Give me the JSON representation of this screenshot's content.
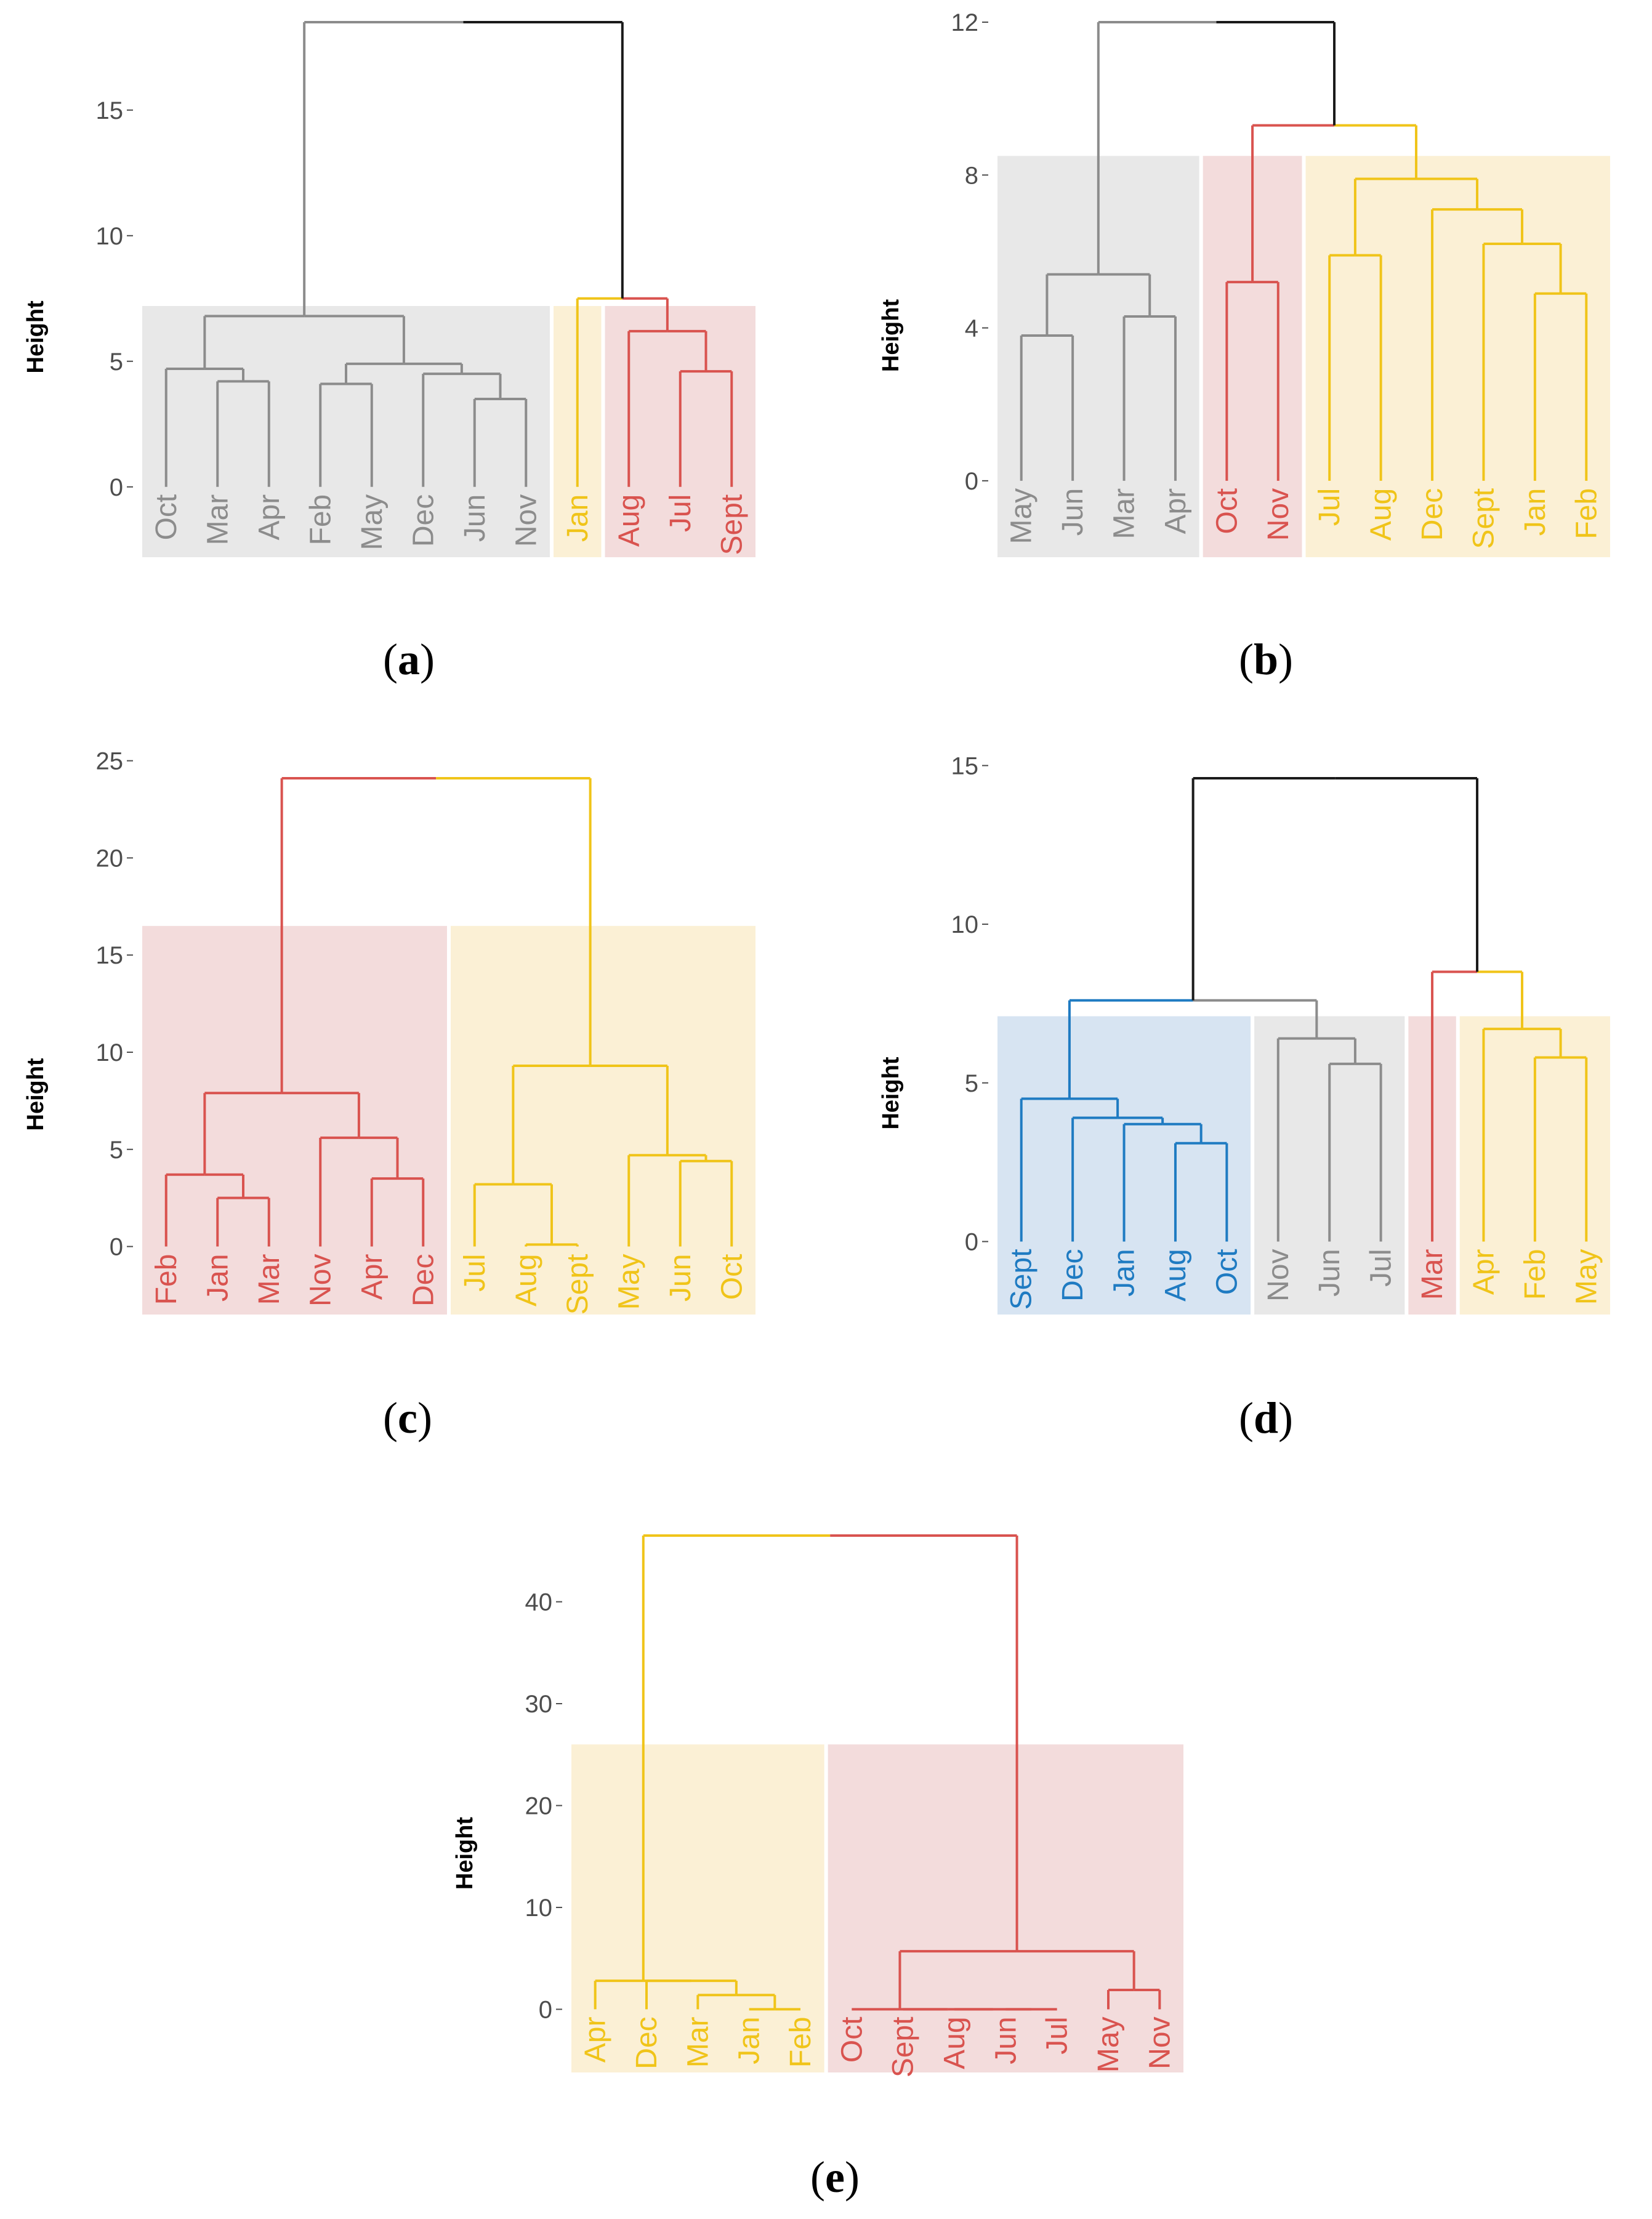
{
  "colors": {
    "gray": "#8c8c8c",
    "red": "#d9534f",
    "yellow": "#f0c419",
    "blue": "#1f7bc2",
    "black": "#1a1a1a",
    "bg_gray": "#e8e8e8",
    "bg_red": "#f3dcdc",
    "bg_yellow": "#fbf0d5",
    "bg_blue": "#d7e4f2"
  },
  "chart_data": [
    {
      "type": "dendrogram",
      "panel": "a",
      "ylabel": "Height",
      "yticks": [
        0,
        5,
        10,
        15
      ],
      "ylim": [
        -2.8,
        18.5
      ],
      "leaves": [
        {
          "label": "Oct",
          "group": "gray"
        },
        {
          "label": "Mar",
          "group": "gray"
        },
        {
          "label": "Apr",
          "group": "gray"
        },
        {
          "label": "Feb",
          "group": "gray"
        },
        {
          "label": "May",
          "group": "gray"
        },
        {
          "label": "Dec",
          "group": "gray"
        },
        {
          "label": "Jun",
          "group": "gray"
        },
        {
          "label": "Nov",
          "group": "gray"
        },
        {
          "label": "Jan",
          "group": "yellow"
        },
        {
          "label": "Aug",
          "group": "red"
        },
        {
          "label": "Jul",
          "group": "red"
        },
        {
          "label": "Sept",
          "group": "red"
        }
      ],
      "merges": [
        {
          "a": "Mar",
          "b": "Apr",
          "h": 4.2,
          "c": "gray"
        },
        {
          "a": "Oct",
          "b": 0,
          "h": 4.7,
          "c": "gray"
        },
        {
          "a": "Feb",
          "b": "May",
          "h": 4.1,
          "c": "gray"
        },
        {
          "a": "Jun",
          "b": "Nov",
          "h": 3.5,
          "c": "gray"
        },
        {
          "a": "Dec",
          "b": 3,
          "h": 4.5,
          "c": "gray"
        },
        {
          "a": 2,
          "b": 4,
          "h": 4.9,
          "c": "gray"
        },
        {
          "a": 1,
          "b": 5,
          "h": 6.8,
          "c": "gray"
        },
        {
          "a": "Jul",
          "b": "Sept",
          "h": 4.6,
          "c": "red"
        },
        {
          "a": "Aug",
          "b": 7,
          "h": 6.2,
          "c": "red"
        },
        {
          "a": "Jan",
          "b": 8,
          "h": 7.5,
          "c": [
            "yellow",
            "red"
          ]
        },
        {
          "a": 6,
          "b": 9,
          "h": 18.5,
          "c": [
            "gray",
            "black"
          ]
        }
      ],
      "boxes": [
        {
          "from": 0,
          "to": 7,
          "fill": "bg_gray",
          "top": 7.2
        },
        {
          "from": 8,
          "to": 8,
          "fill": "bg_yellow",
          "top": 7.2
        },
        {
          "from": 9,
          "to": 11,
          "fill": "bg_red",
          "top": 7.2
        }
      ]
    },
    {
      "type": "dendrogram",
      "panel": "b",
      "ylabel": "Height",
      "yticks": [
        0,
        4,
        8,
        12
      ],
      "ylim": [
        -2,
        12
      ],
      "leaves": [
        {
          "label": "May",
          "group": "gray"
        },
        {
          "label": "Jun",
          "group": "gray"
        },
        {
          "label": "Mar",
          "group": "gray"
        },
        {
          "label": "Apr",
          "group": "gray"
        },
        {
          "label": "Oct",
          "group": "red"
        },
        {
          "label": "Nov",
          "group": "red"
        },
        {
          "label": "Jul",
          "group": "yellow"
        },
        {
          "label": "Aug",
          "group": "yellow"
        },
        {
          "label": "Dec",
          "group": "yellow"
        },
        {
          "label": "Sept",
          "group": "yellow"
        },
        {
          "label": "Jan",
          "group": "yellow"
        },
        {
          "label": "Feb",
          "group": "yellow"
        }
      ],
      "merges": [
        {
          "a": "May",
          "b": "Jun",
          "h": 3.8,
          "c": "gray"
        },
        {
          "a": "Mar",
          "b": "Apr",
          "h": 4.3,
          "c": "gray"
        },
        {
          "a": 0,
          "b": 1,
          "h": 5.4,
          "c": "gray"
        },
        {
          "a": "Oct",
          "b": "Nov",
          "h": 5.2,
          "c": "red"
        },
        {
          "a": "Jul",
          "b": "Aug",
          "h": 5.9,
          "c": "yellow"
        },
        {
          "a": "Jan",
          "b": "Feb",
          "h": 4.9,
          "c": "yellow"
        },
        {
          "a": "Sept",
          "b": 5,
          "h": 6.2,
          "c": "yellow"
        },
        {
          "a": "Dec",
          "b": 6,
          "h": 7.1,
          "c": "yellow"
        },
        {
          "a": 4,
          "b": 7,
          "h": 7.9,
          "c": "yellow"
        },
        {
          "a": 3,
          "b": 8,
          "h": 9.3,
          "c": [
            "red",
            "yellow"
          ]
        },
        {
          "a": 2,
          "b": 9,
          "h": 12.0,
          "c": [
            "gray",
            "black"
          ]
        }
      ],
      "boxes": [
        {
          "from": 0,
          "to": 3,
          "fill": "bg_gray",
          "top": 8.5
        },
        {
          "from": 4,
          "to": 5,
          "fill": "bg_red",
          "top": 8.5
        },
        {
          "from": 6,
          "to": 11,
          "fill": "bg_yellow",
          "top": 8.5
        }
      ]
    },
    {
      "type": "dendrogram",
      "panel": "c",
      "ylabel": "Height",
      "yticks": [
        0,
        5,
        10,
        15,
        20,
        25
      ],
      "ylim": [
        -3.5,
        24.1
      ],
      "leaves": [
        {
          "label": "Feb",
          "group": "red"
        },
        {
          "label": "Jan",
          "group": "red"
        },
        {
          "label": "Mar",
          "group": "red"
        },
        {
          "label": "Nov",
          "group": "red"
        },
        {
          "label": "Apr",
          "group": "red"
        },
        {
          "label": "Dec",
          "group": "red"
        },
        {
          "label": "Jul",
          "group": "yellow"
        },
        {
          "label": "Aug",
          "group": "yellow"
        },
        {
          "label": "Sept",
          "group": "yellow"
        },
        {
          "label": "May",
          "group": "yellow"
        },
        {
          "label": "Jun",
          "group": "yellow"
        },
        {
          "label": "Oct",
          "group": "yellow"
        }
      ],
      "merges": [
        {
          "a": "Jan",
          "b": "Mar",
          "h": 2.5,
          "c": "red"
        },
        {
          "a": "Feb",
          "b": 0,
          "h": 3.7,
          "c": "red"
        },
        {
          "a": "Apr",
          "b": "Dec",
          "h": 3.5,
          "c": "red"
        },
        {
          "a": "Nov",
          "b": 2,
          "h": 5.6,
          "c": "red"
        },
        {
          "a": 1,
          "b": 3,
          "h": 7.9,
          "c": "red"
        },
        {
          "a": "Aug",
          "b": "Sept",
          "h": 0.1,
          "c": "yellow"
        },
        {
          "a": "Jul",
          "b": 5,
          "h": 3.2,
          "c": "yellow"
        },
        {
          "a": "Jun",
          "b": "Oct",
          "h": 4.4,
          "c": "yellow"
        },
        {
          "a": "May",
          "b": 7,
          "h": 4.7,
          "c": "yellow"
        },
        {
          "a": 6,
          "b": 8,
          "h": 9.3,
          "c": "yellow"
        },
        {
          "a": 4,
          "b": 9,
          "h": 24.1,
          "c": [
            "red",
            "yellow"
          ]
        }
      ],
      "boxes": [
        {
          "from": 0,
          "to": 5,
          "fill": "bg_red",
          "top": 16.5
        },
        {
          "from": 6,
          "to": 11,
          "fill": "bg_yellow",
          "top": 16.5
        }
      ]
    },
    {
      "type": "dendrogram",
      "panel": "d",
      "ylabel": "Height",
      "yticks": [
        0,
        5,
        10,
        15
      ],
      "ylim": [
        -2.3,
        14.6
      ],
      "leaves": [
        {
          "label": "Sept",
          "group": "blue"
        },
        {
          "label": "Dec",
          "group": "blue"
        },
        {
          "label": "Jan",
          "group": "blue"
        },
        {
          "label": "Aug",
          "group": "blue"
        },
        {
          "label": "Oct",
          "group": "blue"
        },
        {
          "label": "Nov",
          "group": "gray"
        },
        {
          "label": "Jun",
          "group": "gray"
        },
        {
          "label": "Jul",
          "group": "gray"
        },
        {
          "label": "Mar",
          "group": "red"
        },
        {
          "label": "Apr",
          "group": "yellow"
        },
        {
          "label": "Feb",
          "group": "yellow"
        },
        {
          "label": "May",
          "group": "yellow"
        }
      ],
      "merges": [
        {
          "a": "Aug",
          "b": "Oct",
          "h": 3.1,
          "c": "blue"
        },
        {
          "a": "Jan",
          "b": 0,
          "h": 3.7,
          "c": "blue"
        },
        {
          "a": "Dec",
          "b": 1,
          "h": 3.9,
          "c": "blue"
        },
        {
          "a": "Sept",
          "b": 2,
          "h": 4.5,
          "c": "blue"
        },
        {
          "a": "Jun",
          "b": "Jul",
          "h": 5.6,
          "c": "gray"
        },
        {
          "a": "Nov",
          "b": 4,
          "h": 6.4,
          "c": "gray"
        },
        {
          "a": 3,
          "b": 5,
          "h": 7.6,
          "c": [
            "blue",
            "gray"
          ]
        },
        {
          "a": "Feb",
          "b": "May",
          "h": 5.8,
          "c": "yellow"
        },
        {
          "a": "Apr",
          "b": 7,
          "h": 6.7,
          "c": "yellow"
        },
        {
          "a": "Mar",
          "b": 8,
          "h": 8.5,
          "c": [
            "red",
            "yellow"
          ]
        },
        {
          "a": 6,
          "b": 9,
          "h": 14.6,
          "c": [
            "black",
            "black"
          ]
        }
      ],
      "boxes": [
        {
          "from": 0,
          "to": 4,
          "fill": "bg_blue",
          "top": 7.1
        },
        {
          "from": 5,
          "to": 7,
          "fill": "bg_gray",
          "top": 7.1
        },
        {
          "from": 8,
          "to": 8,
          "fill": "bg_red",
          "top": 7.1
        },
        {
          "from": 9,
          "to": 11,
          "fill": "bg_yellow",
          "top": 7.1
        }
      ]
    },
    {
      "type": "dendrogram",
      "panel": "e",
      "ylabel": "Height",
      "yticks": [
        0,
        10,
        20,
        30,
        40
      ],
      "ylim": [
        -6.2,
        46.5
      ],
      "leaves": [
        {
          "label": "Apr",
          "group": "yellow"
        },
        {
          "label": "Dec",
          "group": "yellow"
        },
        {
          "label": "Mar",
          "group": "yellow"
        },
        {
          "label": "Jan",
          "group": "yellow"
        },
        {
          "label": "Feb",
          "group": "yellow"
        },
        {
          "label": "Oct",
          "group": "red"
        },
        {
          "label": "Sept",
          "group": "red"
        },
        {
          "label": "Aug",
          "group": "red"
        },
        {
          "label": "Jun",
          "group": "red"
        },
        {
          "label": "Jul",
          "group": "red"
        },
        {
          "label": "May",
          "group": "red"
        },
        {
          "label": "Nov",
          "group": "red"
        }
      ],
      "merges": [
        {
          "a": "Jan",
          "b": "Feb",
          "h": 0.0,
          "c": "yellow"
        },
        {
          "a": "Mar",
          "b": 0,
          "h": 1.4,
          "c": "yellow"
        },
        {
          "a": "Dec",
          "b": 1,
          "h": 2.8,
          "c": "yellow"
        },
        {
          "a": "Apr",
          "b": 2,
          "h": 2.8,
          "c": "yellow"
        },
        {
          "a": "Jun",
          "b": "Jul",
          "h": 0.0,
          "c": "red"
        },
        {
          "a": "Aug",
          "b": 4,
          "h": 0.0,
          "c": "red"
        },
        {
          "a": "Sept",
          "b": 5,
          "h": 0.0,
          "c": "red"
        },
        {
          "a": "Oct",
          "b": 6,
          "h": 0.0,
          "c": "red"
        },
        {
          "a": "May",
          "b": "Nov",
          "h": 1.9,
          "c": "red"
        },
        {
          "a": 7,
          "b": 8,
          "h": 5.7,
          "c": "red"
        },
        {
          "a": 3,
          "b": 9,
          "h": 46.5,
          "c": [
            "yellow",
            "red"
          ]
        }
      ],
      "boxes": [
        {
          "from": 0,
          "to": 4,
          "fill": "bg_yellow",
          "top": 26
        },
        {
          "from": 5,
          "to": 11,
          "fill": "bg_red",
          "top": 26
        }
      ]
    }
  ],
  "captions": {
    "a": "a",
    "b": "b",
    "c": "c",
    "d": "d",
    "e": "e"
  }
}
